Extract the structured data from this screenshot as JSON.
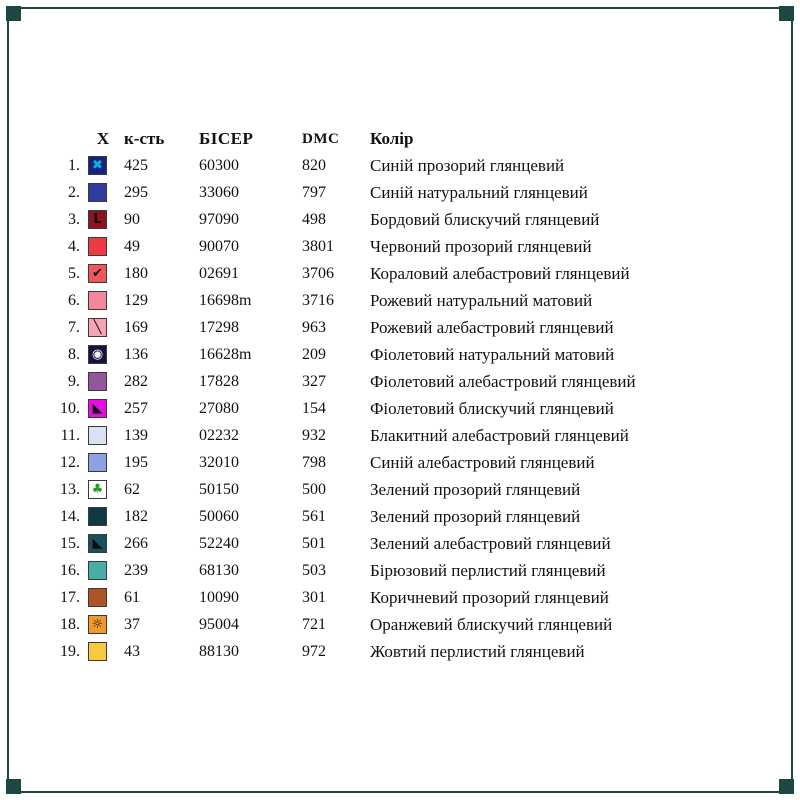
{
  "page": {
    "frame_color": "#1c4742",
    "background": "#ffffff"
  },
  "table": {
    "headers": {
      "symbol": "X",
      "count": "к-сть",
      "beads": "БІСЕР",
      "dmc": "DMC",
      "color": "Колір"
    },
    "rows": [
      {
        "num": "1.",
        "symbol": "✖",
        "symbol_color": "#00b8e0",
        "swatch": "#16227e",
        "count": "425",
        "beads": "60300",
        "dmc": "820",
        "color": "Синій прозорий глянцевий"
      },
      {
        "num": "2.",
        "symbol": "",
        "symbol_color": "#000000",
        "swatch": "#2e3d9e",
        "count": "295",
        "beads": "33060",
        "dmc": "797",
        "color": "Синій натуральний глянцевий"
      },
      {
        "num": "3.",
        "symbol": "L",
        "symbol_color": "#100808",
        "swatch": "#8a1420",
        "count": "90",
        "beads": "97090",
        "dmc": "498",
        "color": "Бордовий блискучий глянцевий"
      },
      {
        "num": "4.",
        "symbol": "",
        "symbol_color": "#000000",
        "swatch": "#ee3a44",
        "count": "49",
        "beads": "90070",
        "dmc": "3801",
        "color": "Червоний прозорий  глянцевий"
      },
      {
        "num": "5.",
        "symbol": "✔",
        "symbol_color": "#141430",
        "swatch": "#f05858",
        "count": "180",
        "beads": "02691",
        "dmc": "3706",
        "color": "Кораловий алебастровий  глянцевий"
      },
      {
        "num": "6.",
        "symbol": "",
        "symbol_color": "#000000",
        "swatch": "#f2889a",
        "count": "129",
        "beads": "16698m",
        "dmc": "3716",
        "color": "Рожевий натуральний матовий"
      },
      {
        "num": "7.",
        "symbol": "╲",
        "symbol_color": "#151515",
        "swatch": "#f6a4b4",
        "count": "169",
        "beads": "17298",
        "dmc": "963",
        "color": "Рожевий алебастровий  глянцевий"
      },
      {
        "num": "8.",
        "symbol": "◉",
        "symbol_color": "#f4f4f4",
        "swatch": "#141440",
        "count": "136",
        "beads": "16628m",
        "dmc": "209",
        "color": "Фіолетовий натуральний матовий"
      },
      {
        "num": "9.",
        "symbol": "",
        "symbol_color": "#000000",
        "swatch": "#91579b",
        "count": "282",
        "beads": "17828",
        "dmc": "327",
        "color": "Фіолетовий алебастровий глянцевий"
      },
      {
        "num": "10.",
        "symbol": "◣",
        "symbol_color": "#101010",
        "swatch": "#e60ce6",
        "count": "257",
        "beads": "27080",
        "dmc": "154",
        "color": "Фіолетовий блискучий  глянцевий"
      },
      {
        "num": "11.",
        "symbol": "",
        "symbol_color": "#000000",
        "swatch": "#d9e1f3",
        "count": "139",
        "beads": "02232",
        "dmc": "932",
        "color": "Блакитний алебастровий  глянцевий"
      },
      {
        "num": "12.",
        "symbol": "",
        "symbol_color": "#000000",
        "swatch": "#8aa2e4",
        "count": "195",
        "beads": "32010",
        "dmc": "798",
        "color": "Синій алебастровий  глянцевий"
      },
      {
        "num": "13.",
        "symbol": "♣",
        "symbol_color": "#28a028",
        "swatch": "#ffffff",
        "count": "62",
        "beads": "50150",
        "dmc": "500",
        "color": "Зелений прозорий  глянцевий"
      },
      {
        "num": "14.",
        "symbol": "",
        "symbol_color": "#000000",
        "swatch": "#0f3a44",
        "count": "182",
        "beads": "50060",
        "dmc": "561",
        "color": "Зелений прозорий  глянцевий"
      },
      {
        "num": "15.",
        "symbol": "◣",
        "symbol_color": "#0a0a0a",
        "swatch": "#17525c",
        "count": "266",
        "beads": "52240",
        "dmc": "501",
        "color": "Зелений алебастровий глянцевий"
      },
      {
        "num": "16.",
        "symbol": "",
        "symbol_color": "#000000",
        "swatch": "#46aea6",
        "count": "239",
        "beads": "68130",
        "dmc": "503",
        "color": "Бірюзовий перлистий глянцевий"
      },
      {
        "num": "17.",
        "symbol": "",
        "symbol_color": "#000000",
        "swatch": "#ad5526",
        "count": "61",
        "beads": "10090",
        "dmc": "301",
        "color": "Коричневий прозорий глянцевий"
      },
      {
        "num": "18.",
        "symbol": "☼",
        "symbol_color": "#151515",
        "swatch": "#f1992e",
        "count": "37",
        "beads": "95004",
        "dmc": "721",
        "color": "Оранжевий блискучий глянцевий"
      },
      {
        "num": "19.",
        "symbol": "",
        "symbol_color": "#000000",
        "swatch": "#f6c93e",
        "count": "43",
        "beads": "88130",
        "dmc": "972",
        "color": "Жовтий перлистий глянцевий"
      }
    ]
  }
}
